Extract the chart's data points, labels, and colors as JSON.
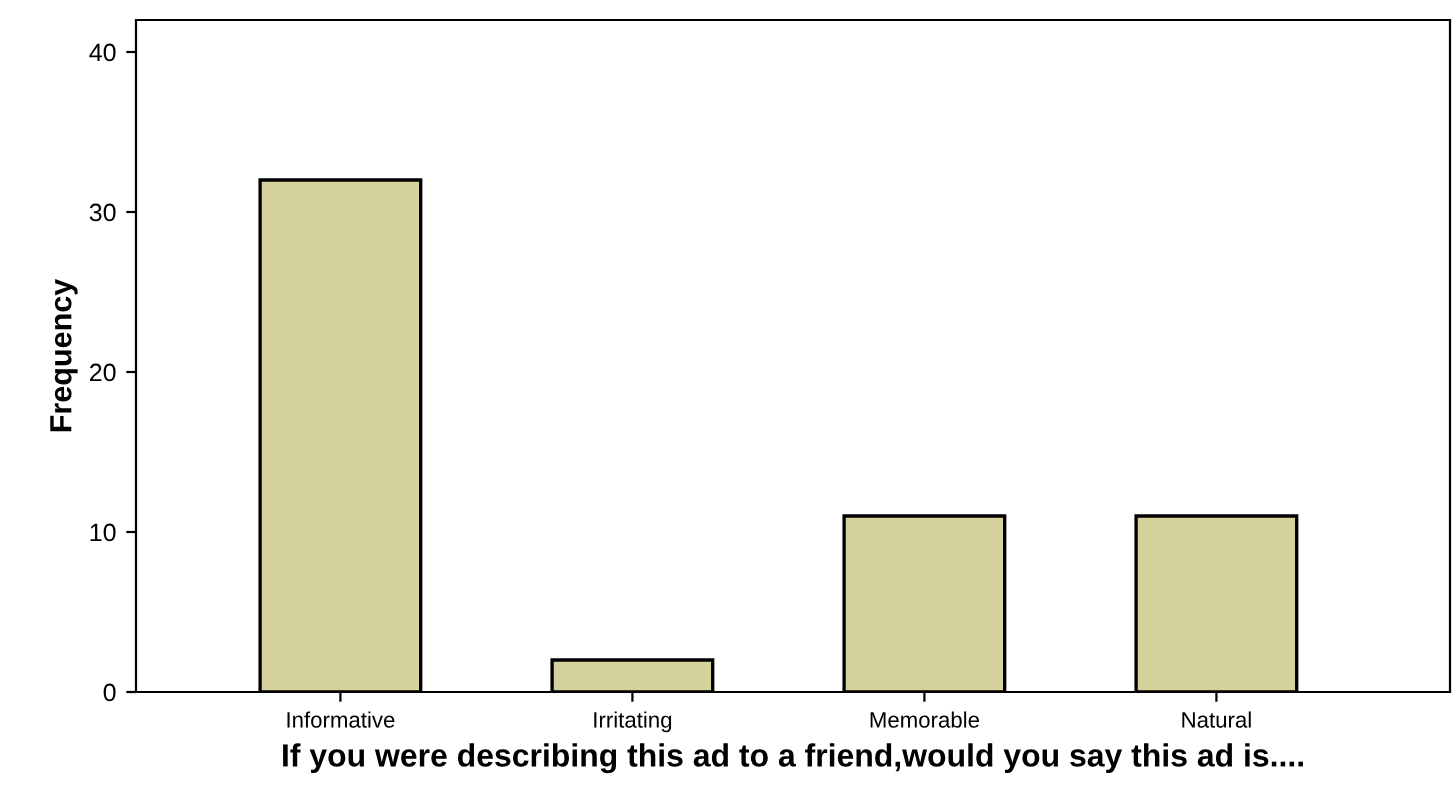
{
  "chart_data": {
    "type": "bar",
    "xlabel": "If you were describing this ad to a friend,would you say this ad is....",
    "ylabel": "Frequency",
    "categories": [
      "Informative",
      "Irritating",
      "Memorable",
      "Natural"
    ],
    "values": [
      32,
      2,
      11,
      11
    ],
    "color": "#d6d29c",
    "ylim": [
      0,
      42
    ],
    "yticks": [
      0,
      10,
      20,
      30,
      40
    ],
    "grid": false,
    "legend": false
  }
}
